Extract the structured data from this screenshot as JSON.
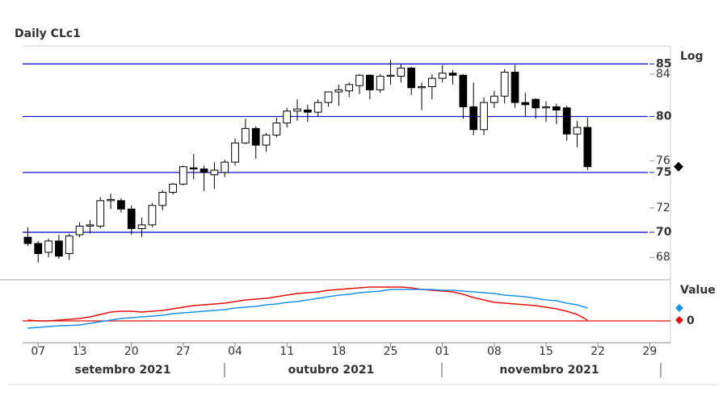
{
  "chart_data": [
    {
      "type": "candlestick",
      "title": "Daily CLc1",
      "y_scale_label": "Log",
      "log": true,
      "x": [
        0,
        1,
        2,
        3,
        4,
        5,
        6,
        7,
        8,
        9,
        10,
        11,
        12,
        13,
        14,
        15,
        16,
        17,
        18,
        19,
        20,
        21,
        22,
        23,
        24,
        25,
        26,
        27,
        28,
        29,
        30,
        31,
        32,
        33,
        34,
        35,
        36,
        37,
        38,
        39,
        40,
        41,
        42,
        43,
        44,
        45,
        46,
        47,
        48,
        49,
        50,
        51,
        52,
        53,
        54
      ],
      "open": [
        69.6,
        69.1,
        68.4,
        69.3,
        68.3,
        69.8,
        70.5,
        70.5,
        72.6,
        72.6,
        71.9,
        70.3,
        70.6,
        72.2,
        73.3,
        74.0,
        75.4,
        75.3,
        74.8,
        75.0,
        75.9,
        77.6,
        78.9,
        77.4,
        78.3,
        79.4,
        80.5,
        80.6,
        80.4,
        81.3,
        82.3,
        82.4,
        82.9,
        83.9,
        82.5,
        83.8,
        83.8,
        84.6,
        82.7,
        82.8,
        83.6,
        84.1,
        83.9,
        80.9,
        78.8,
        81.3,
        81.9,
        84.2,
        81.3,
        81.6,
        80.8,
        80.9,
        80.8,
        78.4,
        79.0
      ],
      "high": [
        70.4,
        69.3,
        69.5,
        69.8,
        69.9,
        70.8,
        71.0,
        72.9,
        73.2,
        72.8,
        72.2,
        71.2,
        72.4,
        73.5,
        74.1,
        75.6,
        76.6,
        75.6,
        75.9,
        76.1,
        78.0,
        79.8,
        79.1,
        78.5,
        79.9,
        80.8,
        81.6,
        81.1,
        81.6,
        82.3,
        83.0,
        83.2,
        84.0,
        84.0,
        84.0,
        85.4,
        85.0,
        84.7,
        83.2,
        84.0,
        84.9,
        84.4,
        84.0,
        83.2,
        81.8,
        82.4,
        84.5,
        84.9,
        82.2,
        81.7,
        81.4,
        81.2,
        81.0,
        79.6,
        79.9
      ],
      "low": [
        68.9,
        67.6,
        68.0,
        67.9,
        67.8,
        69.6,
        69.9,
        70.3,
        71.9,
        71.6,
        69.8,
        69.6,
        70.4,
        71.8,
        73.1,
        73.9,
        74.4,
        73.4,
        73.6,
        74.6,
        75.6,
        77.5,
        76.2,
        76.8,
        78.1,
        79.0,
        79.6,
        79.5,
        80.0,
        80.9,
        81.0,
        81.8,
        82.1,
        81.6,
        82.2,
        83.0,
        83.2,
        82.0,
        80.6,
        81.6,
        83.2,
        83.0,
        79.8,
        78.3,
        78.3,
        80.8,
        81.2,
        80.8,
        80.0,
        79.8,
        79.5,
        79.3,
        77.8,
        77.2,
        75.2
      ],
      "close": [
        69.1,
        68.3,
        69.3,
        68.1,
        69.7,
        70.5,
        70.6,
        72.6,
        72.7,
        71.9,
        70.3,
        70.6,
        72.2,
        73.3,
        74.0,
        75.5,
        75.3,
        75.0,
        75.2,
        75.9,
        77.6,
        78.9,
        77.4,
        78.3,
        79.4,
        80.5,
        80.7,
        80.4,
        81.3,
        82.3,
        82.5,
        83.0,
        83.9,
        82.5,
        83.8,
        83.9,
        84.6,
        82.7,
        82.8,
        83.6,
        84.1,
        83.9,
        80.9,
        78.8,
        81.3,
        81.9,
        84.2,
        81.3,
        81.1,
        80.8,
        80.9,
        80.6,
        78.4,
        79.0,
        75.5
      ],
      "ylim": [
        66.7,
        86.7
      ],
      "yticks": [
        68,
        70,
        72,
        75,
        76,
        80,
        84,
        85
      ],
      "hlines": [
        70,
        75,
        80,
        85
      ],
      "hline_color": "#1414c8",
      "up_color": "#ffffff",
      "down_color": "#000000",
      "xlim": [
        -0.5,
        62
      ],
      "xticks": [
        {
          "value": 1,
          "label": "07"
        },
        {
          "value": 5,
          "label": "13"
        },
        {
          "value": 10,
          "label": "20"
        },
        {
          "value": 15,
          "label": "27"
        },
        {
          "value": 20,
          "label": "04"
        },
        {
          "value": 25,
          "label": "11"
        },
        {
          "value": 30,
          "label": "18"
        },
        {
          "value": 35,
          "label": "25"
        },
        {
          "value": 40,
          "label": "01"
        },
        {
          "value": 45,
          "label": "08"
        },
        {
          "value": 50,
          "label": "15"
        },
        {
          "value": 55,
          "label": "22"
        },
        {
          "value": 60,
          "label": "29"
        }
      ],
      "months": [
        "setembro 2021",
        "outubro 2021",
        "novembro 2021"
      ]
    },
    {
      "type": "line",
      "ylabel": "Value",
      "x": [
        0,
        1,
        2,
        3,
        4,
        5,
        6,
        7,
        8,
        9,
        10,
        11,
        12,
        13,
        14,
        15,
        16,
        17,
        18,
        19,
        20,
        21,
        22,
        23,
        24,
        25,
        26,
        27,
        28,
        29,
        30,
        31,
        32,
        33,
        34,
        35,
        36,
        37,
        38,
        39,
        40,
        41,
        42,
        43,
        44,
        45,
        46,
        47,
        48,
        49,
        50,
        51,
        52,
        53,
        54
      ],
      "series": [
        {
          "color": "#e01010",
          "values": [
            0.05,
            0.0,
            0.0,
            0.05,
            0.1,
            0.15,
            0.25,
            0.4,
            0.55,
            0.6,
            0.6,
            0.55,
            0.6,
            0.65,
            0.75,
            0.85,
            0.95,
            1.0,
            1.05,
            1.1,
            1.2,
            1.3,
            1.35,
            1.4,
            1.5,
            1.6,
            1.7,
            1.75,
            1.8,
            1.9,
            1.95,
            2.0,
            2.05,
            2.1,
            2.1,
            2.1,
            2.1,
            2.05,
            1.95,
            1.9,
            1.85,
            1.8,
            1.65,
            1.45,
            1.3,
            1.15,
            1.1,
            1.05,
            1.0,
            0.95,
            0.85,
            0.75,
            0.6,
            0.4,
            0.05
          ]
        },
        {
          "color": "#1e90e6",
          "values": [
            -0.45,
            -0.4,
            -0.35,
            -0.3,
            -0.28,
            -0.25,
            -0.15,
            -0.05,
            0.05,
            0.15,
            0.2,
            0.25,
            0.3,
            0.35,
            0.45,
            0.5,
            0.55,
            0.6,
            0.65,
            0.7,
            0.8,
            0.85,
            0.9,
            1.0,
            1.05,
            1.15,
            1.2,
            1.3,
            1.4,
            1.5,
            1.6,
            1.65,
            1.75,
            1.8,
            1.85,
            1.95,
            1.95,
            1.95,
            1.95,
            1.95,
            1.9,
            1.9,
            1.85,
            1.8,
            1.75,
            1.7,
            1.6,
            1.55,
            1.5,
            1.4,
            1.3,
            1.25,
            1.1,
            1.0,
            0.8
          ]
        }
      ],
      "ylim": [
        -0.6,
        2.4
      ],
      "yticks": [
        0
      ],
      "grid_color": "#e01010"
    }
  ]
}
